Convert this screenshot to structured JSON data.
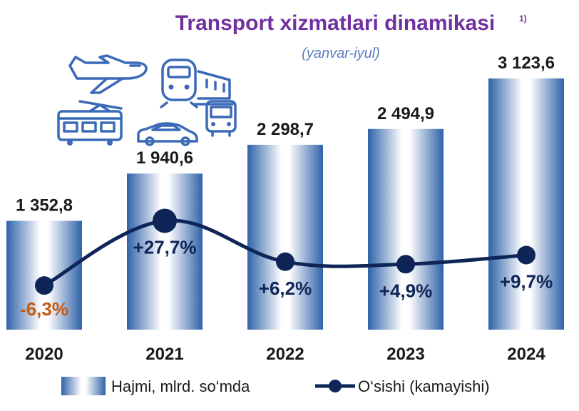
{
  "chart_data": {
    "type": "bar",
    "title": "Transport xizmatlari dinamikasi",
    "title_note": "1)",
    "subtitle": "(yanvar-iyul)",
    "categories": [
      "2020",
      "2021",
      "2022",
      "2023",
      "2024"
    ],
    "value_labels": [
      "1 352,8",
      "1 940,6",
      "2 298,7",
      "2 494,9",
      "3 123,6"
    ],
    "growth_labels": [
      "-6,3%",
      "+27,7%",
      "+6,2%",
      "+4,9%",
      "+9,7%"
    ],
    "series": [
      {
        "name": "Hajmi, mlrd. so‘mda",
        "type": "bar",
        "values": [
          1352.8,
          1940.6,
          2298.7,
          2494.9,
          3123.6
        ]
      },
      {
        "name": "O‘sishi (kamayishi)",
        "type": "line",
        "values": [
          -6.3,
          27.7,
          6.2,
          4.9,
          9.7
        ]
      }
    ],
    "ylim": [
      0,
      3300
    ],
    "y2lim": [
      -25,
      50
    ],
    "grid": false,
    "legend_position": "bottom",
    "colors": {
      "bar_edge": "#2F62A8",
      "bar_center": "#FFFFFF",
      "line": "#0F2557",
      "negative_label": "#C55A11",
      "positive_label": "#0F2557",
      "title": "#7030A0"
    }
  },
  "icons": [
    "airplane-icon",
    "train-icon",
    "tram-icon",
    "bus-icon",
    "car-icon"
  ]
}
